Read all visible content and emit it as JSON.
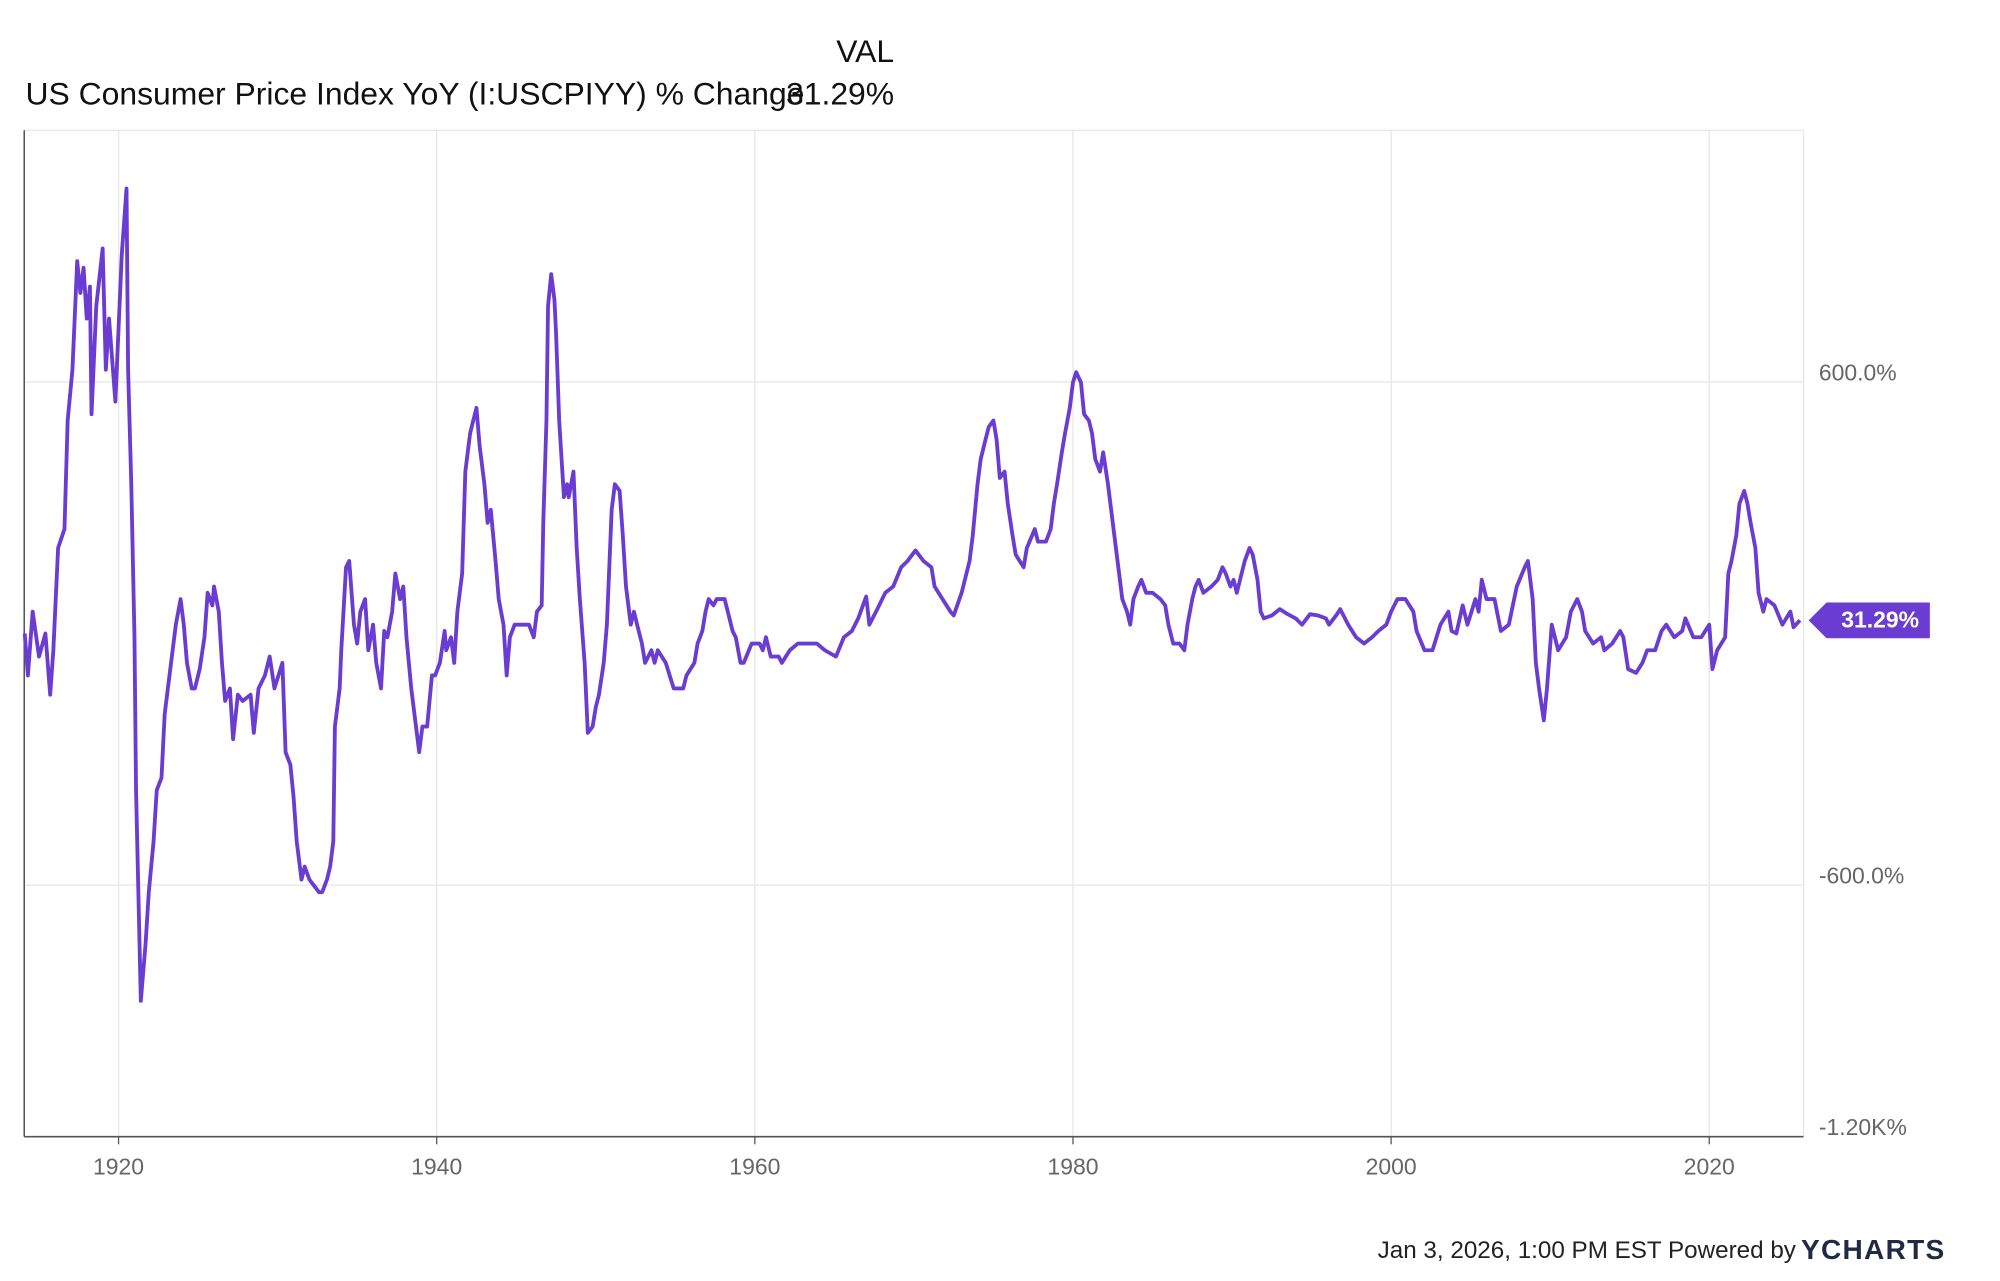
{
  "chart_data": {
    "type": "line",
    "column_label": "VAL",
    "series": [
      {
        "name": "US Consumer Price Index YoY (I:USCPIYY) % Change",
        "color": "#6a3cd2",
        "last_value_label": "31.29%",
        "values": [
          0,
          -100,
          52,
          -55,
          0,
          -146,
          -40,
          204,
          249,
          508,
          629,
          888,
          812,
          872,
          751,
          827,
          523,
          781,
          918,
          629,
          751,
          553,
          903,
          1061,
          629,
          356,
          -9,
          -374,
          -708,
          -876,
          -739,
          -617,
          -496,
          -374,
          -344,
          -192,
          -131,
          -40,
          21,
          82,
          21,
          -70,
          -131,
          -131,
          -85,
          -9,
          97,
          67,
          112,
          52,
          -70,
          -161,
          -131,
          -252,
          -146,
          -161,
          -146,
          -237,
          -131,
          -100,
          -55,
          -131,
          -70,
          -283,
          -313,
          -389,
          -496,
          -587,
          -556,
          -587,
          -602,
          -617,
          -617,
          -587,
          -556,
          -496,
          -222,
          -131,
          -40,
          158,
          173,
          21,
          -24,
          52,
          82,
          -40,
          21,
          -70,
          -131,
          6,
          -9,
          52,
          143,
          82,
          112,
          -9,
          -131,
          -192,
          -283,
          -222,
          -222,
          -100,
          -100,
          -70,
          6,
          -40,
          -9,
          -70,
          52,
          143,
          386,
          477,
          508,
          538,
          447,
          356,
          264,
          295,
          173,
          82,
          21,
          -100,
          -9,
          21,
          21,
          21,
          -9,
          52,
          67,
          264,
          508,
          781,
          857,
          796,
          720,
          508,
          447,
          325,
          356,
          325,
          386,
          204,
          82,
          -70,
          -237,
          -222,
          -176,
          -146,
          -70,
          21,
          295,
          356,
          340,
          234,
          112,
          21,
          52,
          21,
          -24,
          -70,
          -40,
          -70,
          -40,
          -70,
          -131,
          -131,
          -100,
          -70,
          -24,
          6,
          52,
          82,
          67,
          82,
          82,
          52,
          6,
          -9,
          -70,
          -70,
          -24,
          -24,
          -40,
          -9,
          -55,
          -55,
          -70,
          -40,
          -24,
          -24,
          -24,
          -40,
          -55,
          -9,
          6,
          36,
          88,
          21,
          58,
          97,
          112,
          158,
          173,
          198,
          173,
          158,
          112,
          82,
          52,
          43,
          97,
          173,
          234,
          356,
          416,
          462,
          492,
          508,
          462,
          371,
          386,
          310,
          234,
          188,
          158,
          204,
          249,
          219,
          219,
          249,
          310,
          356,
          432,
          477,
          538,
          599,
          623,
          599,
          523,
          508,
          477,
          416,
          386,
          432,
          356,
          295,
          234,
          143,
          82,
          52,
          21,
          82,
          112,
          128,
          97,
          97,
          82,
          67,
          21,
          -24,
          -24,
          -40,
          21,
          82,
          112,
          128,
          97,
          112,
          128,
          158,
          143,
          112,
          128,
          97,
          143,
          173,
          204,
          188,
          128,
          52,
          36,
          43,
          58,
          46,
          36,
          21,
          46,
          43,
          36,
          21,
          46,
          58,
          21,
          -9,
          -24,
          -9,
          6,
          21,
          52,
          82,
          82,
          52,
          6,
          -40,
          -40,
          21,
          52,
          6,
          0,
          67,
          21,
          82,
          52,
          128,
          82,
          82,
          6,
          21,
          112,
          158,
          173,
          82,
          -70,
          -131,
          -207,
          -131,
          21,
          -40,
          -9,
          52,
          82,
          52,
          6,
          -24,
          -9,
          -40,
          -24,
          6,
          -9,
          -85,
          -94,
          -70,
          -40,
          -40,
          6,
          21,
          -9,
          6,
          36,
          -9,
          -9,
          21,
          -85,
          -40,
          -9,
          143,
          173,
          234,
          310,
          340,
          310,
          264,
          204,
          97,
          52,
          82,
          67,
          21,
          52,
          15,
          31.29
        ]
      }
    ],
    "x": [
      1914.1,
      1914.3,
      1914.6,
      1915.0,
      1915.4,
      1915.7,
      1915.9,
      1916.2,
      1916.6,
      1916.8,
      1917.1,
      1917.4,
      1917.6,
      1917.8,
      1918.0,
      1918.2,
      1918.3,
      1918.6,
      1919.0,
      1919.2,
      1919.4,
      1919.8,
      1920.2,
      1920.5,
      1920.6,
      1920.8,
      1921.0,
      1921.1,
      1921.3,
      1921.4,
      1921.7,
      1921.9,
      1922.2,
      1922.4,
      1922.7,
      1922.9,
      1923.1,
      1923.4,
      1923.6,
      1923.9,
      1924.1,
      1924.3,
      1924.6,
      1924.8,
      1925.1,
      1925.4,
      1925.6,
      1925.9,
      1926.0,
      1926.3,
      1926.5,
      1926.7,
      1927.0,
      1927.2,
      1927.5,
      1927.8,
      1928.3,
      1928.5,
      1928.8,
      1929.2,
      1929.5,
      1929.8,
      1930.3,
      1930.5,
      1930.8,
      1931.0,
      1931.2,
      1931.5,
      1931.7,
      1932.0,
      1932.3,
      1932.6,
      1932.8,
      1933.1,
      1933.3,
      1933.5,
      1933.6,
      1933.9,
      1934.0,
      1934.3,
      1934.5,
      1934.8,
      1935.0,
      1935.2,
      1935.5,
      1935.7,
      1936.0,
      1936.2,
      1936.5,
      1936.7,
      1936.9,
      1937.2,
      1937.4,
      1937.7,
      1937.9,
      1938.1,
      1938.4,
      1938.6,
      1938.9,
      1939.1,
      1939.4,
      1939.7,
      1939.9,
      1940.2,
      1940.5,
      1940.6,
      1940.9,
      1941.1,
      1941.3,
      1941.6,
      1941.8,
      1942.1,
      1942.3,
      1942.5,
      1942.7,
      1943.0,
      1943.2,
      1943.4,
      1943.7,
      1943.9,
      1944.2,
      1944.4,
      1944.6,
      1944.9,
      1945.4,
      1945.8,
      1946.1,
      1946.3,
      1946.6,
      1946.7,
      1946.9,
      1947.0,
      1947.2,
      1947.4,
      1947.5,
      1947.7,
      1947.8,
      1948.0,
      1948.2,
      1948.3,
      1948.6,
      1948.8,
      1949.0,
      1949.3,
      1949.5,
      1949.8,
      1950.0,
      1950.2,
      1950.5,
      1950.7,
      1951.0,
      1951.2,
      1951.5,
      1951.7,
      1951.9,
      1952.2,
      1952.4,
      1952.6,
      1952.9,
      1953.1,
      1953.5,
      1953.7,
      1953.9,
      1954.4,
      1954.9,
      1955.5,
      1955.7,
      1956.2,
      1956.4,
      1956.7,
      1956.9,
      1957.1,
      1957.4,
      1957.6,
      1958.1,
      1958.3,
      1958.6,
      1958.8,
      1959.1,
      1959.3,
      1959.8,
      1960.3,
      1960.5,
      1960.7,
      1961.0,
      1961.5,
      1961.7,
      1962.2,
      1962.7,
      1963.2,
      1963.9,
      1964.4,
      1965.1,
      1965.6,
      1966.1,
      1966.5,
      1967.0,
      1967.2,
      1967.7,
      1968.2,
      1968.7,
      1969.2,
      1969.6,
      1970.1,
      1970.6,
      1971.1,
      1971.3,
      1971.8,
      1972.3,
      1972.5,
      1973.0,
      1973.5,
      1973.7,
      1974.0,
      1974.2,
      1974.5,
      1974.7,
      1975.0,
      1975.2,
      1975.4,
      1975.7,
      1975.9,
      1976.2,
      1976.4,
      1976.9,
      1977.1,
      1977.6,
      1977.8,
      1978.3,
      1978.6,
      1978.8,
      1979.0,
      1979.3,
      1979.5,
      1979.8,
      1980.0,
      1980.2,
      1980.5,
      1980.7,
      1981.0,
      1981.2,
      1981.4,
      1981.7,
      1981.9,
      1982.2,
      1982.4,
      1982.6,
      1982.9,
      1983.1,
      1983.4,
      1983.6,
      1983.8,
      1984.1,
      1984.3,
      1984.6,
      1985.0,
      1985.5,
      1985.8,
      1986.0,
      1986.3,
      1986.7,
      1987.0,
      1987.2,
      1987.5,
      1987.7,
      1987.9,
      1988.2,
      1988.7,
      1989.1,
      1989.4,
      1989.6,
      1989.9,
      1990.1,
      1990.3,
      1990.6,
      1990.8,
      1991.1,
      1991.3,
      1991.6,
      1991.8,
      1992.0,
      1992.5,
      1993.0,
      1993.5,
      1994.0,
      1994.4,
      1994.9,
      1995.4,
      1995.9,
      1996.1,
      1996.6,
      1996.8,
      1997.3,
      1997.8,
      1998.3,
      1998.8,
      1999.2,
      1999.7,
      2000.0,
      2000.4,
      2000.9,
      2001.4,
      2001.6,
      2002.1,
      2002.6,
      2003.1,
      2003.6,
      2003.8,
      2004.1,
      2004.5,
      2004.8,
      2005.3,
      2005.5,
      2005.7,
      2006.0,
      2006.5,
      2006.9,
      2007.4,
      2007.9,
      2008.4,
      2008.6,
      2008.9,
      2009.1,
      2009.3,
      2009.6,
      2009.8,
      2010.1,
      2010.5,
      2011.0,
      2011.3,
      2011.7,
      2012.0,
      2012.2,
      2012.7,
      2013.2,
      2013.4,
      2013.9,
      2014.4,
      2014.6,
      2014.9,
      2015.4,
      2015.8,
      2016.1,
      2016.6,
      2017.0,
      2017.3,
      2017.8,
      2018.3,
      2018.5,
      2019.0,
      2019.5,
      2020.0,
      2020.2,
      2020.5,
      2021.0,
      2021.2,
      2021.4,
      2021.7,
      2021.9,
      2022.2,
      2022.4,
      2022.6,
      2022.9,
      2023.1,
      2023.4,
      2023.6,
      2024.1,
      2024.6,
      2025.1,
      2025.3,
      2025.7
    ],
    "xlim": [
      1914.07,
      2025.93
    ],
    "xticks": [
      1920,
      1940,
      1960,
      1980,
      2000,
      2020
    ],
    "ylim": [
      -1200,
      1200
    ],
    "yticks": [
      {
        "value": 600,
        "label": "600.0%"
      },
      {
        "value": -600,
        "label": "-600.0%"
      },
      {
        "value": -1200,
        "label": "-1.20K%"
      }
    ],
    "grid": true,
    "footer": "Jan 3, 2026, 1:00 PM EST Powered by",
    "brand": "YCHARTS"
  }
}
